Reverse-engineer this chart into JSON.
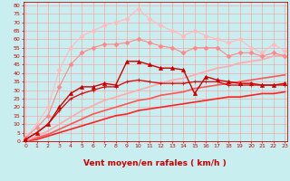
{
  "title": "",
  "xlabel": "Vent moyen/en rafales ( km/h )",
  "bg_color": "#c8eef0",
  "grid_color": "#ff9999",
  "x": [
    0,
    1,
    2,
    3,
    4,
    5,
    6,
    7,
    8,
    9,
    10,
    11,
    12,
    13,
    14,
    15,
    16,
    17,
    18,
    19,
    20,
    21,
    22,
    23
  ],
  "series": [
    {
      "y": [
        2,
        10,
        20,
        42,
        55,
        62,
        65,
        68,
        70,
        72,
        78,
        72,
        68,
        65,
        62,
        65,
        62,
        60,
        58,
        60,
        55,
        52,
        57,
        53
      ],
      "color": "#ffbbbb",
      "marker": "D",
      "lw": 0.8,
      "ms": 2.5
    },
    {
      "y": [
        2,
        8,
        15,
        32,
        45,
        52,
        55,
        57,
        57,
        58,
        60,
        58,
        56,
        55,
        52,
        55,
        55,
        55,
        50,
        52,
        52,
        50,
        52,
        50
      ],
      "color": "#ff8888",
      "marker": "D",
      "lw": 0.8,
      "ms": 2.5
    },
    {
      "y": [
        1,
        5,
        10,
        20,
        28,
        32,
        32,
        34,
        33,
        47,
        47,
        45,
        43,
        43,
        42,
        28,
        38,
        36,
        35,
        34,
        34,
        33,
        33,
        34
      ],
      "color": "#cc0000",
      "marker": "^",
      "lw": 1.0,
      "ms": 3
    },
    {
      "y": [
        0,
        1,
        3,
        5,
        7,
        9,
        11,
        13,
        15,
        16,
        18,
        19,
        20,
        21,
        22,
        23,
        24,
        25,
        26,
        26,
        27,
        28,
        28,
        29
      ],
      "color": "#ff2222",
      "marker": null,
      "lw": 1.2,
      "ms": 0
    },
    {
      "y": [
        0,
        2,
        4,
        7,
        10,
        13,
        16,
        18,
        20,
        22,
        24,
        25,
        27,
        28,
        29,
        31,
        32,
        33,
        34,
        35,
        36,
        37,
        38,
        39
      ],
      "color": "#ff5555",
      "marker": null,
      "lw": 1.2,
      "ms": 0
    },
    {
      "y": [
        0,
        3,
        6,
        10,
        14,
        18,
        21,
        24,
        26,
        28,
        30,
        32,
        34,
        36,
        37,
        39,
        41,
        43,
        44,
        46,
        47,
        48,
        50,
        51
      ],
      "color": "#ffaaaa",
      "marker": null,
      "lw": 1.2,
      "ms": 0
    },
    {
      "y": [
        1,
        5,
        10,
        18,
        25,
        28,
        30,
        32,
        32,
        35,
        36,
        35,
        34,
        34,
        34,
        35,
        35,
        35,
        33,
        33,
        33,
        33,
        33,
        33
      ],
      "color": "#dd0000",
      "marker": "+",
      "lw": 0.9,
      "ms": 3
    }
  ],
  "ylim": [
    0,
    82
  ],
  "xlim": [
    -0.2,
    23.2
  ],
  "yticks": [
    0,
    5,
    10,
    15,
    20,
    25,
    30,
    35,
    40,
    45,
    50,
    55,
    60,
    65,
    70,
    75,
    80
  ],
  "xticks": [
    0,
    1,
    2,
    3,
    4,
    5,
    6,
    7,
    8,
    9,
    10,
    11,
    12,
    13,
    14,
    15,
    16,
    17,
    18,
    19,
    20,
    21,
    22,
    23
  ],
  "tick_color": "#cc0000",
  "axis_label_color": "#cc0000",
  "tick_fontsize": 4.5,
  "xlabel_fontsize": 6.5
}
